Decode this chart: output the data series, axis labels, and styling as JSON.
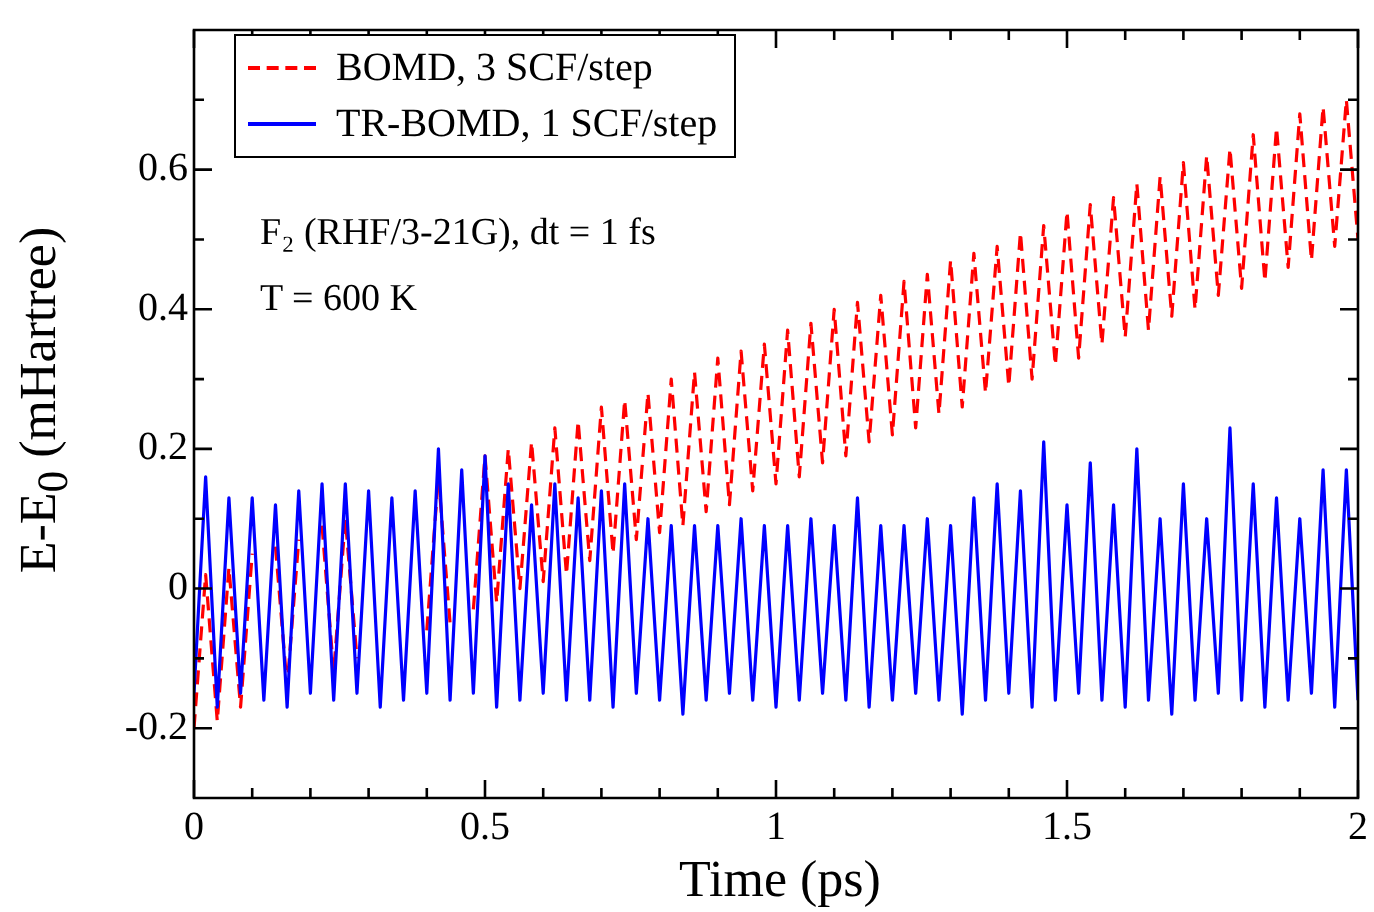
{
  "chart_data": {
    "type": "line",
    "xlabel": "Time (ps)",
    "ylabel": "E-E$_{0}$ (mHartree)",
    "annotations": [
      "F₂ (RHF/3-21G), dt = 1 fs",
      "T = 600 K"
    ],
    "x": [
      0,
      0.02,
      0.04,
      0.06,
      0.08,
      0.1,
      0.12,
      0.14,
      0.16,
      0.18,
      0.2,
      0.22,
      0.24,
      0.26,
      0.28,
      0.3,
      0.32,
      0.34,
      0.36,
      0.38,
      0.4,
      0.42,
      0.44,
      0.46,
      0.48,
      0.5,
      0.52,
      0.54,
      0.56,
      0.58,
      0.6,
      0.62,
      0.64,
      0.66,
      0.68,
      0.7,
      0.72,
      0.74,
      0.76,
      0.78,
      0.8,
      0.82,
      0.84,
      0.86,
      0.88,
      0.9,
      0.92,
      0.94,
      0.96,
      0.98,
      1,
      1.02,
      1.04,
      1.06,
      1.08,
      1.1,
      1.12,
      1.14,
      1.16,
      1.18,
      1.2,
      1.22,
      1.24,
      1.26,
      1.28,
      1.3,
      1.32,
      1.34,
      1.36,
      1.38,
      1.4,
      1.42,
      1.44,
      1.46,
      1.48,
      1.5,
      1.52,
      1.54,
      1.56,
      1.58,
      1.6,
      1.62,
      1.64,
      1.66,
      1.68,
      1.7,
      1.72,
      1.74,
      1.76,
      1.78,
      1.8,
      1.82,
      1.84,
      1.86,
      1.88,
      1.9,
      1.92,
      1.94,
      1.96,
      1.98,
      2
    ],
    "series": [
      {
        "name": "BOMD, 3 SCF/step",
        "color": "#ff0000",
        "line_style": "dashed",
        "values": [
          -0.2,
          0.02,
          -0.19,
          0.03,
          -0.17,
          0.05,
          null,
          0.06,
          -0.14,
          0.07,
          null,
          0.09,
          -0.12,
          0.1,
          -0.1,
          null,
          null,
          null,
          null,
          null,
          -0.06,
          0.16,
          -0.05,
          null,
          -0.03,
          0.19,
          -0.02,
          0.2,
          0,
          0.21,
          0.01,
          0.23,
          0.02,
          0.24,
          0.04,
          0.26,
          0.05,
          0.27,
          0.07,
          0.28,
          0.08,
          0.3,
          0.09,
          0.31,
          0.11,
          0.33,
          0.12,
          0.34,
          0.14,
          0.35,
          0.15,
          0.37,
          0.16,
          0.38,
          0.18,
          0.4,
          0.19,
          0.41,
          0.21,
          0.42,
          0.22,
          0.44,
          0.23,
          0.45,
          0.25,
          0.47,
          0.26,
          0.48,
          0.28,
          0.49,
          0.29,
          0.51,
          0.3,
          0.52,
          0.32,
          0.54,
          0.33,
          0.55,
          0.35,
          0.56,
          0.36,
          0.58,
          0.37,
          0.59,
          0.39,
          0.61,
          0.4,
          0.62,
          0.42,
          0.63,
          0.43,
          0.65,
          0.44,
          0.66,
          0.46,
          0.68,
          0.47,
          0.69,
          0.49,
          0.7,
          0.5
        ]
      },
      {
        "name": "TR-BOMD, 1 SCF/step",
        "color": "#0000ff",
        "line_style": "solid",
        "values": [
          -0.15,
          0.16,
          -0.17,
          0.13,
          -0.15,
          0.13,
          -0.16,
          0.12,
          -0.17,
          0.14,
          -0.15,
          0.15,
          -0.16,
          0.15,
          -0.15,
          0.14,
          -0.17,
          0.13,
          -0.16,
          0.14,
          -0.15,
          0.2,
          -0.16,
          0.17,
          -0.15,
          0.19,
          -0.17,
          0.15,
          -0.16,
          0.12,
          -0.15,
          0.15,
          -0.16,
          0.13,
          -0.16,
          0.14,
          -0.17,
          0.15,
          -0.15,
          0.1,
          -0.16,
          0.09,
          -0.18,
          0.09,
          -0.16,
          0.09,
          -0.15,
          0.1,
          -0.16,
          0.09,
          -0.17,
          0.09,
          -0.16,
          0.1,
          -0.15,
          0.09,
          -0.16,
          0.13,
          -0.17,
          0.09,
          -0.16,
          0.09,
          -0.15,
          0.1,
          -0.16,
          0.09,
          -0.18,
          0.13,
          -0.16,
          0.15,
          -0.15,
          0.14,
          -0.17,
          0.21,
          -0.16,
          0.12,
          -0.15,
          0.18,
          -0.16,
          0.12,
          -0.17,
          0.2,
          -0.16,
          0.1,
          -0.18,
          0.15,
          -0.16,
          0.1,
          -0.15,
          0.23,
          -0.16,
          0.15,
          -0.17,
          0.13,
          -0.16,
          0.1,
          -0.15,
          0.17,
          -0.17,
          0.17,
          -0.16
        ]
      }
    ],
    "xlim": [
      0,
      2
    ],
    "xticks": [
      0,
      {
        "value": 0.1,
        "label": null
      },
      {
        "value": 0.2,
        "label": null
      },
      {
        "value": 0.3,
        "label": null
      },
      {
        "value": 0.4,
        "label": null
      },
      0.5,
      {
        "value": 0.6,
        "label": null
      },
      {
        "value": 0.7,
        "label": null
      },
      {
        "value": 0.8,
        "label": null
      },
      {
        "value": 0.9,
        "label": null
      },
      1,
      {
        "value": 1.1,
        "label": null
      },
      {
        "value": 1.2,
        "label": null
      },
      {
        "value": 1.3,
        "label": null
      },
      {
        "value": 1.4,
        "label": null
      },
      1.5,
      {
        "value": 1.6,
        "label": null
      },
      {
        "value": 1.7,
        "label": null
      },
      {
        "value": 1.8,
        "label": null
      },
      {
        "value": 1.9,
        "label": null
      },
      2
    ],
    "ylim": [
      -0.3,
      0.8
    ],
    "yticks": [
      -0.2,
      {
        "value": -0.1,
        "label": null
      },
      0,
      {
        "value": 0.1,
        "label": null
      },
      0.2,
      {
        "value": 0.3,
        "label": null
      },
      0.4,
      {
        "value": 0.5,
        "label": null
      },
      0.6,
      {
        "value": 0.7,
        "label": null
      }
    ],
    "legend": "top left",
    "marker": "none",
    "grid": false
  }
}
